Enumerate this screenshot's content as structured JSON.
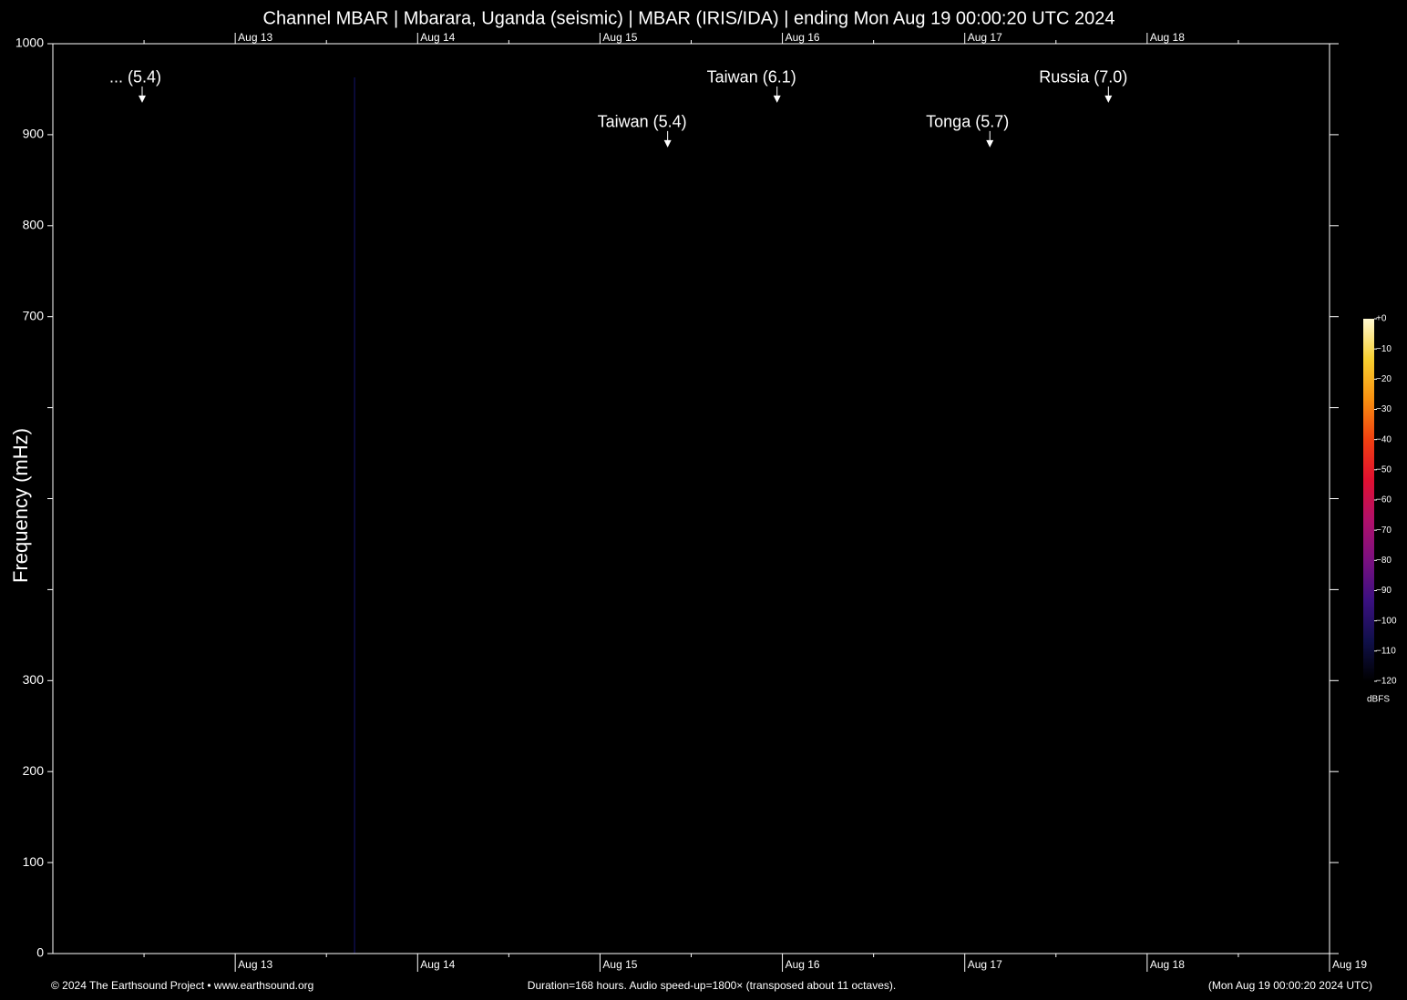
{
  "chart_data": {
    "type": "spectrogram",
    "title": "Channel MBAR | Mbarara, Uganda (seismic) | MBAR (IRIS/IDA) | ending Mon Aug 19 00:00:20 UTC 2024",
    "ylabel": "Frequency (mHz)",
    "xlim": [
      0,
      168
    ],
    "xticks": [
      {
        "value": 24,
        "label": "Aug 13"
      },
      {
        "value": 48,
        "label": "Aug 14"
      },
      {
        "value": 72,
        "label": "Aug 15"
      },
      {
        "value": 96,
        "label": "Aug 16"
      },
      {
        "value": 120,
        "label": "Aug 17"
      },
      {
        "value": 144,
        "label": "Aug 18"
      },
      {
        "value": 168,
        "label": "Aug 19"
      }
    ],
    "xminorticks": [
      12,
      36,
      60,
      84,
      108,
      132,
      156
    ],
    "ylim": [
      0,
      1000
    ],
    "yticks": [
      0,
      100,
      200,
      300,
      700,
      800,
      900,
      1000
    ],
    "yticks_unlabeled": [
      400,
      500,
      600
    ],
    "signal_lines": [
      39.7
    ],
    "signal_color": "#14146e",
    "events": [
      {
        "label": "... (5.4)",
        "x": 11.75,
        "y": 935
      },
      {
        "label": "Taiwan (5.4)",
        "x": 80.9,
        "y": 886
      },
      {
        "label": "Taiwan (6.1)",
        "x": 95.3,
        "y": 935
      },
      {
        "label": "Tonga (5.7)",
        "x": 123.3,
        "y": 886
      },
      {
        "label": "Russia (7.0)",
        "x": 138.9,
        "y": 935
      }
    ],
    "colorbar": {
      "label": "dBFS",
      "lim": [
        -120,
        0
      ],
      "colors": [
        "#000000",
        "#10104a",
        "#3a1080",
        "#7a1080",
        "#b0106a",
        "#e01030",
        "#f04010",
        "#f89010",
        "#f8d030",
        "#fff8d0"
      ],
      "ticks": [
        {
          "value": 0,
          "label": "+0"
        },
        {
          "value": -10,
          "label": "−10"
        },
        {
          "value": -20,
          "label": "−20"
        },
        {
          "value": -30,
          "label": "−30"
        },
        {
          "value": -40,
          "label": "−40"
        },
        {
          "value": -50,
          "label": "−50"
        },
        {
          "value": -60,
          "label": "−60"
        },
        {
          "value": -70,
          "label": "−70"
        },
        {
          "value": -80,
          "label": "−80"
        },
        {
          "value": -90,
          "label": "−90"
        },
        {
          "value": -100,
          "label": "−100"
        },
        {
          "value": -110,
          "label": "−110"
        },
        {
          "value": -120,
          "label": "−120"
        }
      ]
    },
    "footer": {
      "left": "© 2024 The Earthsound Project • www.earthsound.org",
      "center": "Duration=168 hours. Audio speed-up=1800× (transposed about 11 octaves).",
      "right": "(Mon Aug 19 00:00:20 2024 UTC)"
    }
  }
}
